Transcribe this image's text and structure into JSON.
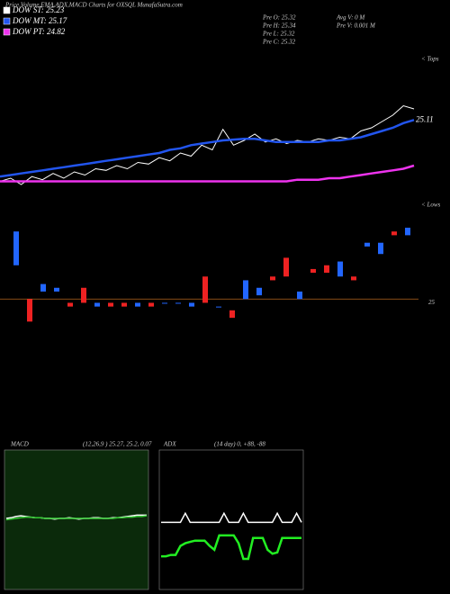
{
  "header": {
    "title": "Price,Volume,EMA,ADX,MACD Charts for OXSQL MunafaSutra.com",
    "stats": [
      "Pre O: 25.32",
      "Pre H: 25.34",
      "Pre L: 25.32",
      "Pre C: 25.32"
    ],
    "volume": [
      "Avg V: 0 M",
      "Pre V: 0.001 M"
    ]
  },
  "chart_data": [
    {
      "type": "line",
      "annotation": "< Tops",
      "price_marker": 25.11,
      "ylim": [
        24.7,
        25.3
      ],
      "series": [
        {
          "name": "DOW ST: 25.23",
          "color": "#ffffff",
          "values": [
            24.72,
            24.74,
            24.7,
            24.75,
            24.73,
            24.77,
            24.74,
            24.78,
            24.76,
            24.8,
            24.79,
            24.82,
            24.8,
            24.84,
            24.83,
            24.87,
            24.85,
            24.9,
            24.88,
            24.95,
            24.92,
            25.05,
            24.95,
            24.98,
            25.02,
            24.97,
            24.99,
            24.96,
            24.98,
            24.97,
            24.99,
            24.98,
            25.0,
            24.99,
            25.04,
            25.06,
            25.1,
            25.14,
            25.2,
            25.18
          ]
        },
        {
          "name": "DOW MT: 25.17",
          "color": "#2255ee",
          "values": [
            24.75,
            24.76,
            24.77,
            24.78,
            24.79,
            24.8,
            24.81,
            24.82,
            24.83,
            24.84,
            24.85,
            24.86,
            24.87,
            24.88,
            24.89,
            24.9,
            24.92,
            24.93,
            24.95,
            24.96,
            24.97,
            24.98,
            24.985,
            24.99,
            24.99,
            24.98,
            24.97,
            24.97,
            24.97,
            24.97,
            24.97,
            24.98,
            24.98,
            24.99,
            25.0,
            25.02,
            25.04,
            25.06,
            25.09,
            25.11
          ]
        },
        {
          "name": "DOW PT: 24.82",
          "color": "#ee33ee",
          "values": [
            24.72,
            24.72,
            24.72,
            24.72,
            24.72,
            24.72,
            24.72,
            24.72,
            24.72,
            24.72,
            24.72,
            24.72,
            24.72,
            24.72,
            24.72,
            24.72,
            24.72,
            24.72,
            24.72,
            24.72,
            24.72,
            24.72,
            24.72,
            24.72,
            24.72,
            24.72,
            24.72,
            24.72,
            24.73,
            24.73,
            24.73,
            24.74,
            24.74,
            24.75,
            24.76,
            24.77,
            24.78,
            24.79,
            24.8,
            24.82
          ]
        }
      ]
    },
    {
      "type": "candlestick",
      "annotation": "< Lows",
      "level": 25,
      "ylim": [
        24.9,
        25.25
      ],
      "open": [
        25.09,
        25.0,
        25.02,
        25.02,
        24.99,
        25.03,
        24.98,
        24.99,
        24.99,
        24.98,
        24.99,
        24.99,
        24.99,
        24.98,
        25.06,
        24.98,
        24.97,
        25.0,
        25.01,
        25.06,
        25.11,
        25.0,
        25.08,
        25.09,
        25.06,
        25.06,
        25.14,
        25.12,
        25.18,
        25.17
      ],
      "close": [
        25.18,
        24.94,
        25.04,
        25.03,
        24.98,
        24.99,
        24.99,
        24.98,
        24.98,
        24.99,
        24.98,
        24.99,
        24.99,
        24.99,
        24.99,
        24.98,
        24.95,
        25.05,
        25.03,
        25.05,
        25.06,
        25.02,
        25.07,
        25.07,
        25.1,
        25.05,
        25.15,
        25.15,
        25.17,
        25.19
      ]
    },
    {
      "type": "line",
      "title": "MACD",
      "subtitle": "(12,26,9 ) 25.27, 25.2, 0.07",
      "ylim": [
        -1,
        1
      ],
      "series": [
        {
          "color": "#ffffff",
          "values": [
            0.02,
            0.03,
            0.05,
            0.06,
            0.05,
            0.04,
            0.03,
            0.03,
            0.02,
            0.02,
            0.01,
            0.02,
            0.02,
            0.03,
            0.02,
            0.01,
            0.02,
            0.02,
            0.03,
            0.03,
            0.02,
            0.02,
            0.03,
            0.03,
            0.04,
            0.05,
            0.06,
            0.07,
            0.07,
            0.07
          ]
        },
        {
          "color": "#33cc33",
          "values": [
            0.0,
            0.01,
            0.02,
            0.03,
            0.04,
            0.04,
            0.03,
            0.03,
            0.02,
            0.02,
            0.02,
            0.02,
            0.02,
            0.02,
            0.02,
            0.02,
            0.02,
            0.02,
            0.02,
            0.02,
            0.02,
            0.02,
            0.02,
            0.03,
            0.03,
            0.04,
            0.04,
            0.05,
            0.05,
            0.06
          ]
        }
      ]
    },
    {
      "type": "line",
      "title": "ADX",
      "subtitle": "(14 day) 0, +88, -88",
      "ylim": [
        0,
        100
      ],
      "series": [
        {
          "color": "#ffffff",
          "values": [
            48,
            48,
            48,
            48,
            48,
            55,
            48,
            48,
            48,
            48,
            48,
            48,
            48,
            55,
            48,
            48,
            48,
            55,
            48,
            48,
            48,
            48,
            48,
            48,
            55,
            48,
            48,
            48,
            55,
            48
          ]
        },
        {
          "color": "#22ee22",
          "values": [
            22,
            22,
            23,
            23,
            30,
            32,
            33,
            34,
            34,
            34,
            30,
            27,
            38,
            38,
            38,
            38,
            32,
            20,
            20,
            36,
            36,
            36,
            27,
            24,
            25,
            36,
            36,
            36,
            36,
            36
          ]
        }
      ]
    }
  ]
}
